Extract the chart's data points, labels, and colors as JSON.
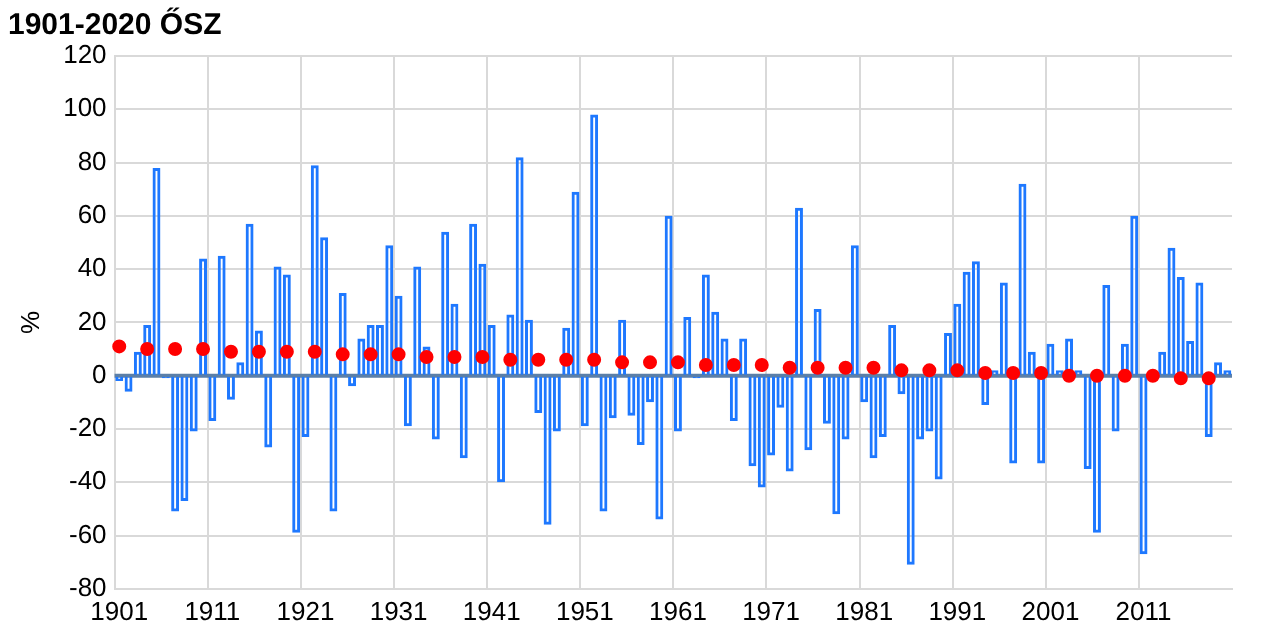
{
  "chart_data": {
    "type": "bar",
    "title": "1901-2020 ŐSZ",
    "ylabel": "%",
    "categories": [
      "1901",
      null,
      null,
      null,
      null,
      null,
      null,
      null,
      null,
      null,
      "1911",
      null,
      null,
      null,
      null,
      null,
      null,
      null,
      null,
      null,
      "1921",
      null,
      null,
      null,
      null,
      null,
      null,
      null,
      null,
      null,
      "1931",
      null,
      null,
      null,
      null,
      null,
      null,
      null,
      null,
      null,
      "1941",
      null,
      null,
      null,
      null,
      null,
      null,
      null,
      null,
      null,
      "1951",
      null,
      null,
      null,
      null,
      null,
      null,
      null,
      null,
      null,
      "1961",
      null,
      null,
      null,
      null,
      null,
      null,
      null,
      null,
      null,
      "1971",
      null,
      null,
      null,
      null,
      null,
      null,
      null,
      null,
      null,
      "1981",
      null,
      null,
      null,
      null,
      null,
      null,
      null,
      null,
      null,
      "1991",
      null,
      null,
      null,
      null,
      null,
      null,
      null,
      null,
      null,
      "2001",
      null,
      null,
      null,
      null,
      null,
      null,
      null,
      null,
      null,
      "2011",
      null,
      null,
      null,
      null,
      null,
      null,
      null,
      null,
      null
    ],
    "series": [
      {
        "color": "#1e78ff",
        "values": [
          -2,
          -6,
          9,
          19,
          78,
          -1,
          -51,
          -47,
          -21,
          44,
          -17,
          45,
          -9,
          5,
          57,
          17,
          -27,
          41,
          38,
          -59,
          -23,
          79,
          52,
          -51,
          31,
          -4,
          14,
          19,
          19,
          49,
          30,
          -19,
          41,
          11,
          -24,
          54,
          27,
          -31,
          57,
          42,
          19,
          -40,
          23,
          82,
          21,
          -14,
          -56,
          -21,
          18,
          69,
          -19,
          98,
          -51,
          -16,
          21,
          -15,
          -26,
          -10,
          -54,
          60,
          -21,
          22,
          -1,
          38,
          24,
          14,
          -17,
          14,
          -34,
          -42,
          -30,
          -12,
          -36,
          63,
          -28,
          25,
          -18,
          -52,
          -24,
          49,
          -10,
          -31,
          -23,
          19,
          -7,
          -71,
          -24,
          -21,
          -39,
          16,
          27,
          39,
          43,
          -11,
          2,
          35,
          -33,
          72,
          9,
          -33,
          12,
          2,
          14,
          2,
          -35,
          -59,
          34,
          -21,
          12,
          60,
          -67,
          -1,
          9,
          48,
          37,
          13,
          35,
          -23,
          5,
          2
        ]
      },
      {
        "type": "scatter",
        "color": "#ff0000",
        "values": [
          11,
          null,
          null,
          10,
          null,
          null,
          10,
          null,
          null,
          10,
          null,
          null,
          9,
          null,
          null,
          9,
          null,
          null,
          9,
          null,
          null,
          9,
          null,
          null,
          8,
          null,
          null,
          8,
          null,
          null,
          8,
          null,
          null,
          7,
          null,
          null,
          7,
          null,
          null,
          7,
          null,
          null,
          6,
          null,
          null,
          6,
          null,
          null,
          6,
          null,
          null,
          6,
          null,
          null,
          5,
          null,
          null,
          5,
          null,
          null,
          5,
          null,
          null,
          4,
          null,
          null,
          4,
          null,
          null,
          4,
          null,
          null,
          3,
          null,
          null,
          3,
          null,
          null,
          3,
          null,
          null,
          3,
          null,
          null,
          2,
          null,
          null,
          2,
          null,
          null,
          2,
          null,
          null,
          1,
          null,
          null,
          1,
          null,
          null,
          1,
          null,
          null,
          0,
          null,
          null,
          0,
          null,
          null,
          0,
          null,
          null,
          0,
          null,
          null,
          -1,
          null,
          null,
          -1,
          null,
          null
        ]
      }
    ],
    "ylim": [
      -80,
      120
    ],
    "yticks": [
      -80,
      -60,
      -40,
      -20,
      0,
      20,
      40,
      60,
      80,
      100,
      120
    ],
    "grid": true,
    "marker": "circle",
    "ref_lines": [
      {
        "axis": "y",
        "value": 0,
        "color": "#5b7fa8"
      }
    ]
  }
}
